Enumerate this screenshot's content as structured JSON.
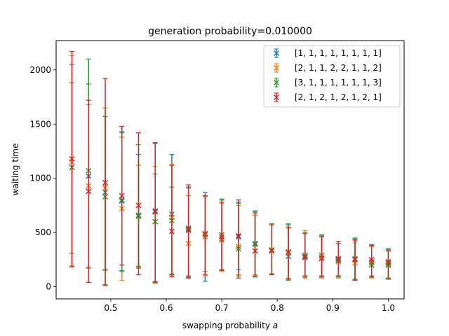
{
  "chart_data": {
    "type": "scatter",
    "title": "generation probability=0.010000",
    "xlabel": "swapping probability",
    "xlabel_var": "a",
    "ylabel": "waiting time",
    "xlim": [
      0.4015,
      1.0285
    ],
    "ylim": [
      -112,
      2270
    ],
    "xticks": [
      0.5,
      0.6,
      0.7,
      0.8,
      0.9,
      1.0
    ],
    "xtick_labels": [
      "0.5",
      "0.6",
      "0.7",
      "0.8",
      "0.9",
      "1.0"
    ],
    "yticks": [
      0,
      500,
      1000,
      1500,
      2000
    ],
    "ytick_labels": [
      "0",
      "500",
      "1000",
      "1500",
      "2000"
    ],
    "grid": false,
    "legend_position": "upper right",
    "x": [
      0.43,
      0.46,
      0.49,
      0.52,
      0.55,
      0.58,
      0.61,
      0.64,
      0.67,
      0.7,
      0.73,
      0.76,
      0.79,
      0.82,
      0.85,
      0.88,
      0.91,
      0.94,
      0.97,
      1.0
    ],
    "series": [
      {
        "name": "[1, 1, 1, 1, 1, 1, 1, 1]",
        "color": "#1f77b4",
        "values": [
          1100,
          1020,
          870,
          790,
          660,
          700,
          670,
          540,
          460,
          440,
          460,
          400,
          330,
          280,
          280,
          270,
          240,
          250,
          230,
          220
        ],
        "err_low": [
          190,
          180,
          160,
          150,
          180,
          50,
          110,
          90,
          50,
          150,
          160,
          90,
          120,
          70,
          100,
          100,
          100,
          70,
          100,
          80
        ],
        "err_high": [
          2050,
          1870,
          1570,
          1430,
          1220,
          1320,
          1220,
          920,
          870,
          800,
          780,
          700,
          580,
          570,
          520,
          470,
          420,
          440,
          390,
          350
        ]
      },
      {
        "name": "[2, 1, 1, 2, 2, 1, 1, 2]",
        "color": "#ff7f0e",
        "values": [
          1150,
          930,
          910,
          720,
          650,
          600,
          640,
          400,
          460,
          430,
          370,
          330,
          340,
          310,
          290,
          270,
          230,
          220,
          220,
          210
        ],
        "err_low": [
          180,
          170,
          150,
          60,
          170,
          30,
          100,
          80,
          100,
          140,
          110,
          110,
          120,
          80,
          80,
          80,
          80,
          60,
          80,
          70
        ],
        "err_high": [
          2130,
          1680,
          1650,
          1380,
          1120,
          1110,
          1130,
          840,
          830,
          770,
          750,
          660,
          580,
          540,
          520,
          460,
          400,
          410,
          370,
          330
        ]
      },
      {
        "name": "[3, 1, 1, 1, 1, 1, 1, 3]",
        "color": "#2ca02c",
        "values": [
          1100,
          1070,
          830,
          800,
          650,
          600,
          610,
          530,
          480,
          480,
          350,
          390,
          340,
          320,
          290,
          290,
          250,
          260,
          200,
          200
        ],
        "err_low": [
          310,
          40,
          20,
          140,
          190,
          40,
          120,
          100,
          140,
          160,
          100,
          90,
          120,
          60,
          100,
          100,
          90,
          70,
          90,
          80
        ],
        "err_high": [
          1880,
          2100,
          1570,
          1420,
          1310,
          1040,
          920,
          910,
          830,
          810,
          770,
          690,
          580,
          580,
          500,
          480,
          400,
          450,
          380,
          330
        ]
      },
      {
        "name": "[2, 1, 2, 1, 2, 1, 2, 1]",
        "color": "#d62728",
        "values": [
          1180,
          880,
          960,
          840,
          750,
          690,
          510,
          520,
          490,
          460,
          470,
          330,
          330,
          320,
          270,
          260,
          260,
          250,
          250,
          230
        ],
        "err_low": [
          190,
          40,
          10,
          200,
          110,
          40,
          90,
          80,
          110,
          150,
          80,
          100,
          110,
          70,
          90,
          90,
          100,
          60,
          90,
          70
        ],
        "err_high": [
          2170,
          1720,
          1920,
          1480,
          1420,
          1330,
          1120,
          940,
          840,
          780,
          800,
          680,
          570,
          550,
          490,
          460,
          420,
          430,
          380,
          340
        ]
      }
    ]
  }
}
